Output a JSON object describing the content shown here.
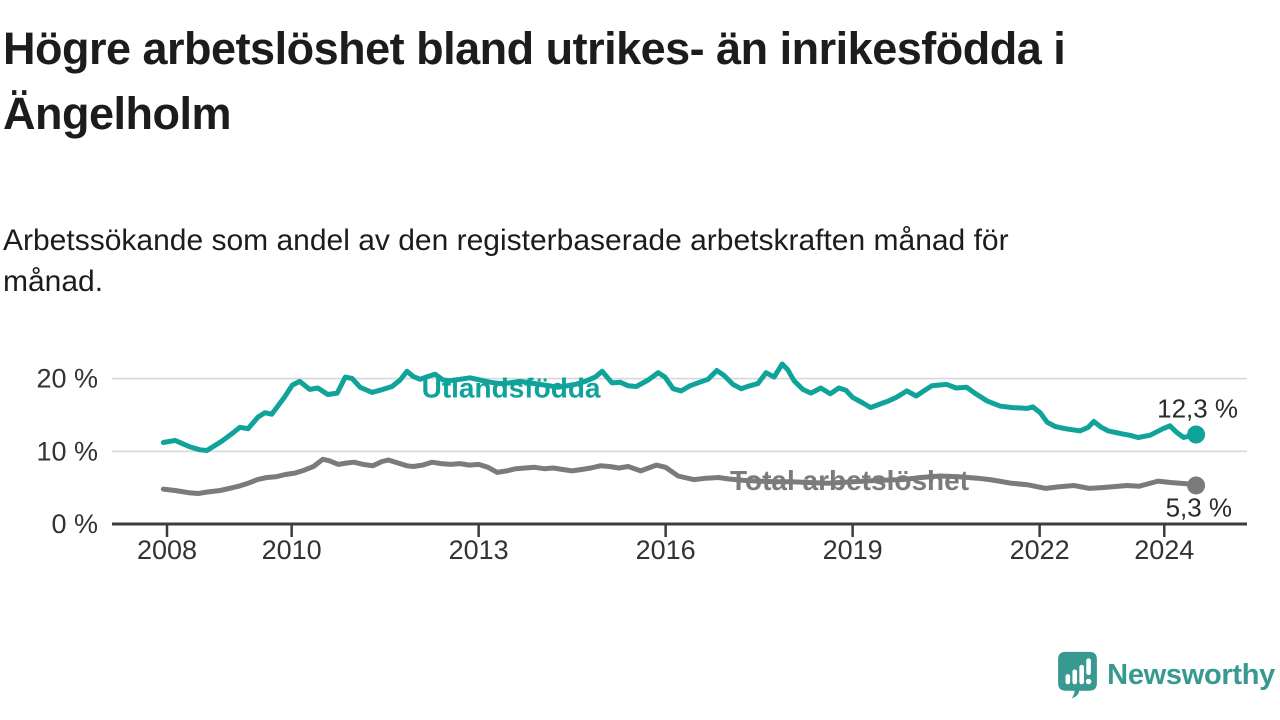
{
  "header": {
    "title_lines": [
      "Högre arbetslöshet bland utrikes- än inrikesfödda i",
      "Ängelholm"
    ],
    "subtitle_lines": [
      "Arbetssökande som andel av den registerbaserade arbetskraften månad för",
      "månad."
    ]
  },
  "branding": {
    "logo_text": "Newsworthy",
    "logo_icon": "speech-bubble-bar-chart-icon",
    "brand_color": "#37998f"
  },
  "colors": {
    "series_utlandsfodda": "#10a39a",
    "series_total": "#7b7b7b",
    "grid": "#d8d8d8",
    "axis": "#3c3c3c",
    "tick_text": "#333333",
    "value_text": "#2b2b2b",
    "background": "#ffffff"
  },
  "chart_data": {
    "type": "line",
    "title": "Högre arbetslöshet bland utrikes- än inrikesfödda i Ängelholm",
    "subtitle": "Arbetssökande som andel av den registerbaserade arbetskraften månad för månad.",
    "xlabel": "",
    "ylabel": "",
    "grid": "horizontal",
    "legend_position": "inline-labels",
    "x_axis": {
      "range": [
        2007.8,
        2025.4
      ],
      "ticks": [
        2008,
        2010,
        2013,
        2016,
        2019,
        2022,
        2024
      ],
      "tick_labels": [
        "2008",
        "2010",
        "2013",
        "2016",
        "2019",
        "2022",
        "2024"
      ]
    },
    "y_axis": {
      "range": [
        0,
        23.5
      ],
      "ticks": [
        0,
        10,
        20
      ],
      "tick_labels": [
        "0 %",
        "10 %",
        "20 %"
      ]
    },
    "series": [
      {
        "name": "Utlandsfödda",
        "end_value": 12.3,
        "end_label": "12,3 %",
        "label_anchor": {
          "x": 2013.52,
          "y": 17.4
        },
        "points": [
          [
            2007.94,
            11.2
          ],
          [
            2008.13,
            11.5
          ],
          [
            2008.37,
            10.6
          ],
          [
            2008.53,
            10.2
          ],
          [
            2008.64,
            10.1
          ],
          [
            2008.88,
            11.4
          ],
          [
            2009.04,
            12.4
          ],
          [
            2009.17,
            13.3
          ],
          [
            2009.3,
            13.1
          ],
          [
            2009.46,
            14.7
          ],
          [
            2009.57,
            15.3
          ],
          [
            2009.68,
            15.1
          ],
          [
            2009.89,
            17.5
          ],
          [
            2010.01,
            19.1
          ],
          [
            2010.13,
            19.6
          ],
          [
            2010.29,
            18.5
          ],
          [
            2010.42,
            18.7
          ],
          [
            2010.58,
            17.8
          ],
          [
            2010.73,
            18.0
          ],
          [
            2010.86,
            20.2
          ],
          [
            2010.97,
            20.0
          ],
          [
            2011.1,
            18.8
          ],
          [
            2011.29,
            18.1
          ],
          [
            2011.42,
            18.4
          ],
          [
            2011.61,
            18.9
          ],
          [
            2011.74,
            19.8
          ],
          [
            2011.85,
            21.0
          ],
          [
            2011.95,
            20.3
          ],
          [
            2012.06,
            19.9
          ],
          [
            2012.19,
            20.3
          ],
          [
            2012.3,
            20.6
          ],
          [
            2012.43,
            19.8
          ],
          [
            2012.54,
            19.7
          ],
          [
            2012.7,
            19.9
          ],
          [
            2012.86,
            20.1
          ],
          [
            2013.02,
            19.8
          ],
          [
            2013.18,
            19.5
          ],
          [
            2013.34,
            19.3
          ],
          [
            2013.5,
            19.4
          ],
          [
            2013.66,
            19.6
          ],
          [
            2013.82,
            19.4
          ],
          [
            2013.98,
            19.2
          ],
          [
            2014.14,
            19.0
          ],
          [
            2014.27,
            18.8
          ],
          [
            2014.55,
            19.2
          ],
          [
            2014.71,
            19.6
          ],
          [
            2014.87,
            20.2
          ],
          [
            2014.98,
            21.0
          ],
          [
            2015.14,
            19.4
          ],
          [
            2015.27,
            19.5
          ],
          [
            2015.4,
            19.0
          ],
          [
            2015.53,
            18.9
          ],
          [
            2015.72,
            19.8
          ],
          [
            2015.88,
            20.8
          ],
          [
            2015.99,
            20.2
          ],
          [
            2016.12,
            18.6
          ],
          [
            2016.25,
            18.3
          ],
          [
            2016.39,
            19.0
          ],
          [
            2016.55,
            19.5
          ],
          [
            2016.68,
            19.9
          ],
          [
            2016.82,
            21.1
          ],
          [
            2016.94,
            20.4
          ],
          [
            2017.08,
            19.2
          ],
          [
            2017.21,
            18.6
          ],
          [
            2017.35,
            19.0
          ],
          [
            2017.48,
            19.3
          ],
          [
            2017.61,
            20.8
          ],
          [
            2017.74,
            20.2
          ],
          [
            2017.87,
            22.0
          ],
          [
            2017.96,
            21.2
          ],
          [
            2018.06,
            19.7
          ],
          [
            2018.2,
            18.5
          ],
          [
            2018.33,
            18.0
          ],
          [
            2018.49,
            18.7
          ],
          [
            2018.64,
            17.9
          ],
          [
            2018.78,
            18.7
          ],
          [
            2018.89,
            18.4
          ],
          [
            2019.0,
            17.4
          ],
          [
            2019.15,
            16.7
          ],
          [
            2019.29,
            16.0
          ],
          [
            2019.44,
            16.5
          ],
          [
            2019.57,
            16.9
          ],
          [
            2019.7,
            17.4
          ],
          [
            2019.87,
            18.3
          ],
          [
            2020.02,
            17.6
          ],
          [
            2020.16,
            18.4
          ],
          [
            2020.27,
            19.0
          ],
          [
            2020.51,
            19.2
          ],
          [
            2020.66,
            18.7
          ],
          [
            2020.83,
            18.8
          ],
          [
            2020.96,
            18.0
          ],
          [
            2021.16,
            16.9
          ],
          [
            2021.37,
            16.2
          ],
          [
            2021.57,
            16.0
          ],
          [
            2021.8,
            15.9
          ],
          [
            2021.89,
            16.1
          ],
          [
            2022.01,
            15.3
          ],
          [
            2022.12,
            14.0
          ],
          [
            2022.25,
            13.4
          ],
          [
            2022.41,
            13.1
          ],
          [
            2022.65,
            12.8
          ],
          [
            2022.78,
            13.3
          ],
          [
            2022.87,
            14.1
          ],
          [
            2022.99,
            13.3
          ],
          [
            2023.1,
            12.8
          ],
          [
            2023.32,
            12.4
          ],
          [
            2023.45,
            12.2
          ],
          [
            2023.58,
            11.9
          ],
          [
            2023.77,
            12.2
          ],
          [
            2023.98,
            13.1
          ],
          [
            2024.09,
            13.5
          ],
          [
            2024.2,
            12.6
          ],
          [
            2024.31,
            11.9
          ],
          [
            2024.41,
            12.1
          ],
          [
            2024.51,
            12.3
          ]
        ]
      },
      {
        "name": "Total arbetslöshet",
        "end_value": 5.3,
        "end_label": "5,3 %",
        "label_anchor": {
          "x": 2018.95,
          "y": 4.67
        },
        "points": [
          [
            2007.94,
            4.8
          ],
          [
            2008.13,
            4.6
          ],
          [
            2008.35,
            4.3
          ],
          [
            2008.5,
            4.2
          ],
          [
            2008.65,
            4.4
          ],
          [
            2008.85,
            4.6
          ],
          [
            2009.0,
            4.9
          ],
          [
            2009.15,
            5.2
          ],
          [
            2009.3,
            5.6
          ],
          [
            2009.45,
            6.1
          ],
          [
            2009.6,
            6.4
          ],
          [
            2009.75,
            6.5
          ],
          [
            2009.9,
            6.8
          ],
          [
            2010.05,
            7.0
          ],
          [
            2010.2,
            7.4
          ],
          [
            2010.35,
            7.9
          ],
          [
            2010.5,
            8.9
          ],
          [
            2010.6,
            8.7
          ],
          [
            2010.75,
            8.2
          ],
          [
            2010.9,
            8.4
          ],
          [
            2011.0,
            8.5
          ],
          [
            2011.15,
            8.2
          ],
          [
            2011.3,
            8.0
          ],
          [
            2011.45,
            8.6
          ],
          [
            2011.55,
            8.8
          ],
          [
            2011.7,
            8.4
          ],
          [
            2011.85,
            8.0
          ],
          [
            2011.95,
            7.9
          ],
          [
            2012.1,
            8.1
          ],
          [
            2012.25,
            8.5
          ],
          [
            2012.4,
            8.3
          ],
          [
            2012.55,
            8.2
          ],
          [
            2012.7,
            8.3
          ],
          [
            2012.85,
            8.1
          ],
          [
            2013.0,
            8.2
          ],
          [
            2013.15,
            7.8
          ],
          [
            2013.3,
            7.1
          ],
          [
            2013.45,
            7.3
          ],
          [
            2013.6,
            7.6
          ],
          [
            2013.75,
            7.7
          ],
          [
            2013.9,
            7.8
          ],
          [
            2014.05,
            7.6
          ],
          [
            2014.2,
            7.7
          ],
          [
            2014.35,
            7.5
          ],
          [
            2014.5,
            7.3
          ],
          [
            2014.65,
            7.5
          ],
          [
            2014.8,
            7.7
          ],
          [
            2014.95,
            8.0
          ],
          [
            2015.1,
            7.9
          ],
          [
            2015.25,
            7.7
          ],
          [
            2015.4,
            7.9
          ],
          [
            2015.6,
            7.3
          ],
          [
            2015.85,
            8.1
          ],
          [
            2016.0,
            7.8
          ],
          [
            2016.2,
            6.6
          ],
          [
            2016.45,
            6.1
          ],
          [
            2016.65,
            6.3
          ],
          [
            2016.85,
            6.4
          ],
          [
            2017.0,
            6.2
          ],
          [
            2017.25,
            6.0
          ],
          [
            2017.5,
            5.9
          ],
          [
            2017.75,
            5.8
          ],
          [
            2018.0,
            5.8
          ],
          [
            2018.3,
            5.7
          ],
          [
            2018.6,
            5.6
          ],
          [
            2019.0,
            5.8
          ],
          [
            2019.4,
            6.0
          ],
          [
            2019.8,
            6.1
          ],
          [
            2020.1,
            6.4
          ],
          [
            2020.4,
            6.6
          ],
          [
            2020.7,
            6.5
          ],
          [
            2021.0,
            6.3
          ],
          [
            2021.2,
            6.1
          ],
          [
            2021.35,
            5.9
          ],
          [
            2021.55,
            5.6
          ],
          [
            2021.8,
            5.4
          ],
          [
            2022.1,
            4.9
          ],
          [
            2022.3,
            5.1
          ],
          [
            2022.55,
            5.3
          ],
          [
            2022.8,
            4.9
          ],
          [
            2023.0,
            5.0
          ],
          [
            2023.15,
            5.1
          ],
          [
            2023.4,
            5.3
          ],
          [
            2023.6,
            5.2
          ],
          [
            2023.9,
            5.9
          ],
          [
            2024.1,
            5.7
          ],
          [
            2024.25,
            5.6
          ],
          [
            2024.4,
            5.5
          ],
          [
            2024.51,
            5.3
          ]
        ]
      }
    ]
  }
}
